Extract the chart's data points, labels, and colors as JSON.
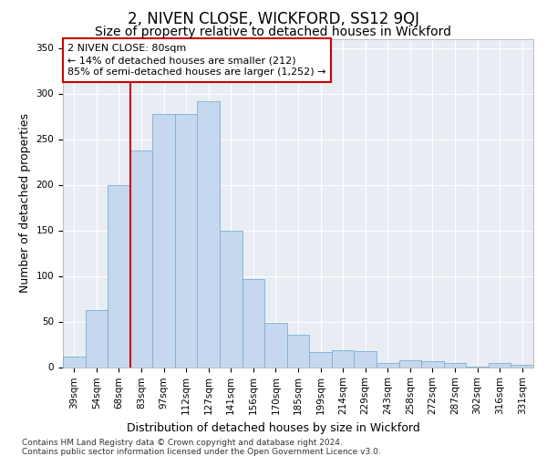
{
  "title": "2, NIVEN CLOSE, WICKFORD, SS12 9QJ",
  "subtitle": "Size of property relative to detached houses in Wickford",
  "xlabel": "Distribution of detached houses by size in Wickford",
  "ylabel": "Number of detached properties",
  "footer_line1": "Contains HM Land Registry data © Crown copyright and database right 2024.",
  "footer_line2": "Contains public sector information licensed under the Open Government Licence v3.0.",
  "categories": [
    "39sqm",
    "54sqm",
    "68sqm",
    "83sqm",
    "97sqm",
    "112sqm",
    "127sqm",
    "141sqm",
    "156sqm",
    "170sqm",
    "185sqm",
    "199sqm",
    "214sqm",
    "229sqm",
    "243sqm",
    "258sqm",
    "272sqm",
    "287sqm",
    "302sqm",
    "316sqm",
    "331sqm"
  ],
  "values": [
    12,
    63,
    200,
    238,
    278,
    278,
    292,
    150,
    97,
    49,
    36,
    17,
    19,
    18,
    5,
    8,
    7,
    5,
    1,
    5,
    3
  ],
  "bar_color": "#c5d8ee",
  "bar_edge_color": "#7aadd4",
  "annotation_line1": "2 NIVEN CLOSE: 80sqm",
  "annotation_line2": "← 14% of detached houses are smaller (212)",
  "annotation_line3": "85% of semi-detached houses are larger (1,252) →",
  "annotation_box_facecolor": "#ffffff",
  "annotation_box_edgecolor": "#cc0000",
  "vline_color": "#cc0000",
  "vline_x_index": 2.5,
  "ylim_max": 360,
  "yticks": [
    0,
    50,
    100,
    150,
    200,
    250,
    300,
    350
  ],
  "plot_bg_color": "#e8edf4",
  "title_fontsize": 12,
  "subtitle_fontsize": 10,
  "ylabel_fontsize": 9,
  "xlabel_fontsize": 9,
  "tick_fontsize": 7.5,
  "annotation_fontsize": 8,
  "footer_fontsize": 6.5
}
